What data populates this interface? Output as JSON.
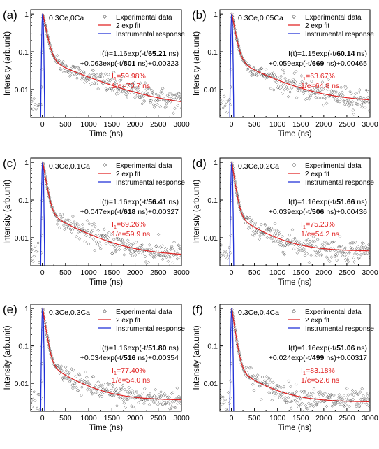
{
  "chart_data": [
    {
      "type": "scatter",
      "panel": "(a)",
      "sample": "0.3Ce,0Ca",
      "xlabel": "Time (ns)",
      "ylabel": "Intensity (arb.unit)",
      "yscale": "log",
      "xlim": [
        -250,
        3000
      ],
      "ylim": [
        0.0018,
        1.3
      ],
      "xticks": [
        "0",
        "500",
        "1000",
        "1500",
        "2000",
        "2500",
        "3000"
      ],
      "yticks": [
        "0.01",
        "0.1",
        "1"
      ],
      "legend": [
        "Experimental data",
        "2 exp fit",
        "Instrumental response"
      ],
      "fit": {
        "A1": 1.16,
        "tau1": 65.21,
        "A2": 0.063,
        "tau2": 801,
        "C": 0.00323
      },
      "fit_line1": {
        "pre": "I(t)=1.16exp(-t/",
        "tau": "65.21",
        "post": " ns)"
      },
      "fit_line2": {
        "pre": "+0.063exp(-t/",
        "tau": "801",
        "post": " ns)+0.00323"
      },
      "ratio_label": "I",
      "ratio_sub": "1",
      "ratio_value": "=59.98%",
      "inv_e": "1/e=70.7 ns",
      "baseline_early": 0.0035
    },
    {
      "type": "scatter",
      "panel": "(b)",
      "sample": "0.3Ce,0.05Ca",
      "xlabel": "Time (ns)",
      "ylabel": "Intensity (arb.unit)",
      "yscale": "log",
      "xlim": [
        -250,
        3000
      ],
      "ylim": [
        0.0018,
        1.3
      ],
      "xticks": [
        "0",
        "500",
        "1000",
        "1500",
        "2000",
        "2500",
        "3000"
      ],
      "yticks": [
        "0.01",
        "0.1",
        "1"
      ],
      "legend": [
        "Experimental data",
        "2 exp fit",
        "Instrumental response"
      ],
      "fit": {
        "A1": 1.15,
        "tau1": 60.14,
        "A2": 0.059,
        "tau2": 669,
        "C": 0.00465
      },
      "fit_line1": {
        "pre": "I(t)=1.15exp(-t/",
        "tau": "60.14",
        "post": " ns)"
      },
      "fit_line2": {
        "pre": "+0.059exp(-t/",
        "tau": "669",
        "post": " ns)+0.00465"
      },
      "ratio_label": "I",
      "ratio_sub": "1",
      "ratio_value": "=63.67%",
      "inv_e": "1/e=64.8 ns",
      "baseline_early": 0.0045
    },
    {
      "type": "scatter",
      "panel": "(c)",
      "sample": "0.3Ce,0.1Ca",
      "xlabel": "Time (ns)",
      "ylabel": "Intensity (arb.unit)",
      "yscale": "log",
      "xlim": [
        -250,
        3000
      ],
      "ylim": [
        0.0018,
        1.3
      ],
      "xticks": [
        "0",
        "500",
        "1000",
        "1500",
        "2000",
        "2500",
        "3000"
      ],
      "yticks": [
        "0.01",
        "0.1",
        "1"
      ],
      "legend": [
        "Experimental data",
        "2 exp fit",
        "Instrumental response"
      ],
      "fit": {
        "A1": 1.16,
        "tau1": 56.41,
        "A2": 0.047,
        "tau2": 618,
        "C": 0.00327
      },
      "fit_line1": {
        "pre": "I(t)=1.16exp(-t/",
        "tau": "56.41",
        "post": " ns)"
      },
      "fit_line2": {
        "pre": "+0.047exp(-t/",
        "tau": "618",
        "post": " ns)+0.00327"
      },
      "ratio_label": "I",
      "ratio_sub": "1",
      "ratio_value": "=69.26%",
      "inv_e": "1/e=59.9 ns",
      "baseline_early": 0.0032
    },
    {
      "type": "scatter",
      "panel": "(d)",
      "sample": "0.3Ce,0.2Ca",
      "xlabel": "Time (ns)",
      "ylabel": "Intensity (arb.unit)",
      "yscale": "log",
      "xlim": [
        -250,
        3000
      ],
      "ylim": [
        0.0018,
        1.3
      ],
      "xticks": [
        "0",
        "500",
        "1000",
        "1500",
        "2000",
        "2500",
        "3000"
      ],
      "yticks": [
        "0.01",
        "0.1",
        "1"
      ],
      "legend": [
        "Experimental data",
        "2 exp fit",
        "Instrumental response"
      ],
      "fit": {
        "A1": 1.16,
        "tau1": 51.66,
        "A2": 0.039,
        "tau2": 506,
        "C": 0.00436
      },
      "fit_line1": {
        "pre": "I(t)=1.16exp(-t/",
        "tau": "51.66",
        "post": " ns)"
      },
      "fit_line2": {
        "pre": "+0.039exp(-t/",
        "tau": "506",
        "post": " ns)+0.00436"
      },
      "ratio_label": "I",
      "ratio_sub": "1",
      "ratio_value": "=75.23%",
      "inv_e": "1/e=54.2 ns",
      "baseline_early": 0.0038
    },
    {
      "type": "scatter",
      "panel": "(e)",
      "sample": "0.3Ce,0.3Ca",
      "xlabel": "Time (ns)",
      "ylabel": "Intensity (arb.unit)",
      "yscale": "log",
      "xlim": [
        -250,
        3000
      ],
      "ylim": [
        0.0018,
        1.3
      ],
      "xticks": [
        "0",
        "500",
        "1000",
        "1500",
        "2000",
        "2500",
        "3000"
      ],
      "yticks": [
        "0.01",
        "0.1",
        "1"
      ],
      "legend": [
        "Experimental data",
        "2 exp fit",
        "Instrumental response"
      ],
      "fit": {
        "A1": 1.16,
        "tau1": 51.8,
        "A2": 0.034,
        "tau2": 516,
        "C": 0.00354
      },
      "fit_line1": {
        "pre": "I(t)=1.16exp(-t/",
        "tau": "51.80",
        "post": " ns)"
      },
      "fit_line2": {
        "pre": "+0.034exp(-t/",
        "tau": "516",
        "post": " ns)+0.00354"
      },
      "ratio_label": "I",
      "ratio_sub": "1",
      "ratio_value": "=77.40%",
      "inv_e": "1/e=54.0 ns",
      "baseline_early": 0.0034
    },
    {
      "type": "scatter",
      "panel": "(f)",
      "sample": "0.3Ce,0.4Ca",
      "xlabel": "Time (ns)",
      "ylabel": "Intensity (arb.unit)",
      "yscale": "log",
      "xlim": [
        -250,
        3000
      ],
      "ylim": [
        0.0018,
        1.3
      ],
      "xticks": [
        "0",
        "500",
        "1000",
        "1500",
        "2000",
        "2500",
        "3000"
      ],
      "yticks": [
        "0.01",
        "0.1",
        "1"
      ],
      "legend": [
        "Experimental data",
        "2 exp fit",
        "Instrumental response"
      ],
      "fit": {
        "A1": 1.16,
        "tau1": 51.06,
        "A2": 0.024,
        "tau2": 499,
        "C": 0.00317
      },
      "fit_line1": {
        "pre": "I(t)=1.16exp(-t/",
        "tau": "51.06",
        "post": " ns)"
      },
      "fit_line2": {
        "pre": "+0.024exp(-t/",
        "tau": "499",
        "post": " ns)+0.00317"
      },
      "ratio_label": "I",
      "ratio_sub": "1",
      "ratio_value": "=83.18%",
      "inv_e": "1/e=52.6 ns",
      "baseline_early": 0.0033
    }
  ],
  "colors": {
    "data": "#555555",
    "fit": "#e02020",
    "instrument": "#1f2fd6",
    "annotation": "#e02020"
  }
}
